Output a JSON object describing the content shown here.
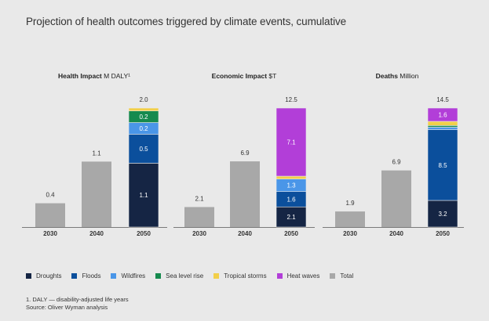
{
  "title": "Projection of health outcomes triggered by climate events, cumulative",
  "colors": {
    "Droughts": "#152544",
    "Floods": "#0b4f9c",
    "Wildfires": "#4a96e8",
    "Sea level rise": "#168a4e",
    "Tropical storms": "#f2cf4a",
    "Heat waves": "#b23ed8",
    "Total": "#a8a8a8"
  },
  "legend": [
    "Droughts",
    "Floods",
    "Wildfires",
    "Sea level rise",
    "Tropical storms",
    "Heat waves",
    "Total"
  ],
  "footnotes": [
    "1. DALY — disability-adjusted life years",
    "Source: Oliver Wyman analysis"
  ],
  "chart_data": [
    {
      "type": "bar",
      "title_bold": "Health Impact",
      "title_unit": "M DALY¹",
      "categories": [
        "2030",
        "2040",
        "2050"
      ],
      "totals": [
        0.4,
        1.1,
        2.0
      ],
      "ylim": [
        0,
        2.0
      ],
      "stack_2050": [
        {
          "name": "Droughts",
          "value": 1.1,
          "label": "1.1"
        },
        {
          "name": "Floods",
          "value": 0.5,
          "label": "0.5"
        },
        {
          "name": "Wildfires",
          "value": 0.2,
          "label": "0.2"
        },
        {
          "name": "Sea level rise",
          "value": 0.2,
          "label": "0.2"
        },
        {
          "name": "Tropical storms",
          "value": 0.05,
          "label": ""
        }
      ]
    },
    {
      "type": "bar",
      "title_bold": "Economic Impact",
      "title_unit": "$T",
      "categories": [
        "2030",
        "2040",
        "2050"
      ],
      "totals": [
        2.1,
        6.9,
        12.5
      ],
      "ylim": [
        0,
        12.5
      ],
      "stack_2050": [
        {
          "name": "Droughts",
          "value": 2.1,
          "label": "2.1"
        },
        {
          "name": "Floods",
          "value": 1.6,
          "label": "1.6"
        },
        {
          "name": "Wildfires",
          "value": 1.3,
          "label": "1.3"
        },
        {
          "name": "Tropical storms",
          "value": 0.3,
          "label": ""
        },
        {
          "name": "Heat waves",
          "value": 7.1,
          "label": "7.1"
        }
      ]
    },
    {
      "type": "bar",
      "title_bold": "Deaths",
      "title_unit": "Million",
      "categories": [
        "2030",
        "2040",
        "2050"
      ],
      "totals": [
        1.9,
        6.9,
        14.5
      ],
      "ylim": [
        0,
        14.5
      ],
      "stack_2050": [
        {
          "name": "Droughts",
          "value": 3.2,
          "label": "3.2"
        },
        {
          "name": "Floods",
          "value": 8.5,
          "label": "8.5"
        },
        {
          "name": "Wildfires",
          "value": 0.3,
          "label": ""
        },
        {
          "name": "Sea level rise",
          "value": 0.2,
          "label": ""
        },
        {
          "name": "Tropical storms",
          "value": 0.5,
          "label": ""
        },
        {
          "name": "Heat waves",
          "value": 1.6,
          "label": "1.6"
        }
      ]
    }
  ]
}
